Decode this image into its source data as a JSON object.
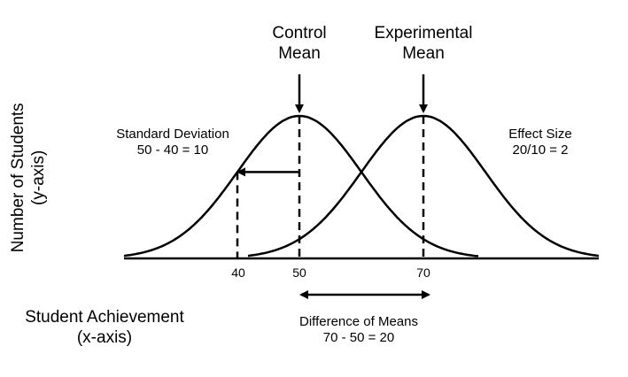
{
  "labels": {
    "control_mean": [
      "Control",
      "Mean"
    ],
    "experimental_mean": [
      "Experimental",
      "Mean"
    ],
    "standard_deviation": [
      "Standard Deviation",
      "50 - 40 = 10"
    ],
    "effect_size": [
      "Effect Size",
      "20/10 = 2"
    ],
    "y_axis": [
      "Number of Students",
      "(y-axis)"
    ],
    "x_axis": [
      "Student Achievement",
      "(x-axis)"
    ],
    "difference_of_means": [
      "Difference of Means",
      "70 - 50 = 20"
    ]
  },
  "ticks": [
    "40",
    "50",
    "70"
  ],
  "distributions": {
    "control_mean": 50,
    "experimental_mean": 70,
    "standard_deviation": 10
  },
  "colors": {
    "line": "#000000",
    "background": "#ffffff"
  }
}
